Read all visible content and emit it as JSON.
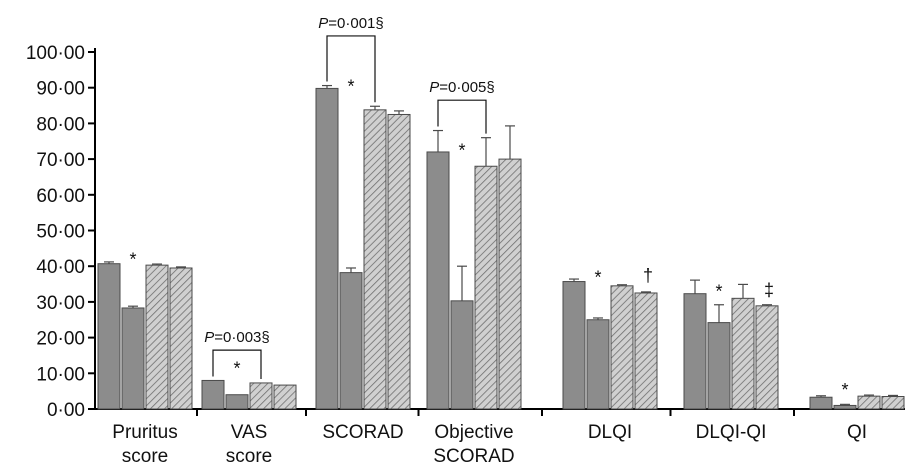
{
  "chart_data": {
    "type": "bar",
    "categories": [
      [
        "Pruritus",
        "score"
      ],
      [
        "VAS",
        "score"
      ],
      [
        "SCORAD"
      ],
      [
        "Objective",
        "SCORAD"
      ],
      [
        "DLQI"
      ],
      [
        "DLQI-QI"
      ],
      [
        "QI"
      ]
    ],
    "series": [
      {
        "fill": "#8c8c8c",
        "hatch": false,
        "values": [
          40.7,
          8.0,
          89.8,
          72.0,
          35.7,
          32.3,
          3.3
        ],
        "errors": [
          0.5,
          0.0,
          0.8,
          6.0,
          0.7,
          3.8,
          0.4
        ]
      },
      {
        "fill": "#8c8c8c",
        "hatch": false,
        "values": [
          28.3,
          4.0,
          38.2,
          30.3,
          25.0,
          24.2,
          1.0
        ],
        "errors": [
          0.5,
          0.0,
          1.3,
          9.7,
          0.5,
          5.0,
          0.3
        ]
      },
      {
        "fill": "#bdbdbd",
        "hatch": true,
        "values": [
          40.3,
          7.3,
          83.8,
          68.0,
          34.5,
          31.0,
          3.6
        ],
        "errors": [
          0.3,
          0.0,
          1.0,
          8.0,
          0.3,
          3.9,
          0.3
        ]
      },
      {
        "fill": "#bdbdbd",
        "hatch": true,
        "values": [
          39.5,
          6.7,
          82.5,
          70.0,
          32.5,
          28.9,
          3.5
        ],
        "errors": [
          0.3,
          0.0,
          1.0,
          9.3,
          0.3,
          0.3,
          0.3
        ]
      }
    ],
    "ylim": [
      0,
      100
    ],
    "yticks": [
      "0·00",
      "10·00",
      "20·00",
      "30·00",
      "40·00",
      "50·00",
      "60·00",
      "70·00",
      "80·00",
      "90·00",
      "100·00"
    ],
    "significance_marks": [
      {
        "category": 0,
        "text": "*",
        "y": 43
      },
      {
        "category": 1,
        "text": "*",
        "y": 12.5
      },
      {
        "category": 2,
        "text": "*",
        "y": 91.5
      },
      {
        "category": 3,
        "text": "*",
        "y": 73.5
      },
      {
        "category": 4,
        "text": "*",
        "y": 38
      },
      {
        "category": 4,
        "text": "†",
        "y": 38.5,
        "after_series": 3
      },
      {
        "category": 5,
        "text": "*",
        "y": 34
      },
      {
        "category": 5,
        "text": "‡",
        "y": 34.5,
        "after_series": 3
      },
      {
        "category": 6,
        "text": "*",
        "y": 6.5
      }
    ],
    "brackets": [
      {
        "category": 1,
        "from_series": 0,
        "to_series": 2,
        "y": 16.5,
        "p_italic": "P",
        "p_text": "=0·003§"
      },
      {
        "category": 2,
        "from_series": 0,
        "to_series": 2,
        "y": 104.5,
        "p_italic": "P",
        "p_text": "=0·001§"
      },
      {
        "category": 3,
        "from_series": 0,
        "to_series": 2,
        "y": 86.5,
        "p_italic": "P",
        "p_text": "=0·005§"
      }
    ]
  }
}
